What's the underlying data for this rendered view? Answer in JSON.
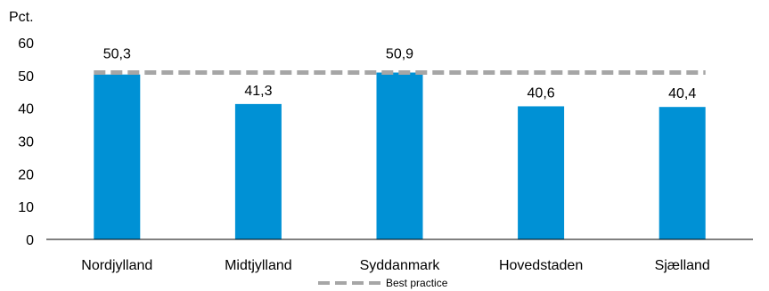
{
  "chart_data": {
    "type": "bar",
    "unit_label": "Pct.",
    "categories": [
      "Nordjylland",
      "Midtjylland",
      "Syddanmark",
      "Hovedstaden",
      "Sjælland"
    ],
    "values": [
      50.3,
      41.3,
      50.9,
      40.6,
      40.4
    ],
    "value_labels": [
      "50,3",
      "41,3",
      "50,9",
      "40,6",
      "40,4"
    ],
    "ylim": [
      0,
      60
    ],
    "yticks": [
      0,
      10,
      20,
      30,
      40,
      50,
      60
    ],
    "reference_line": {
      "name": "Best practice",
      "value": 50.9,
      "style": "dashed",
      "color": "#a6a6a6"
    },
    "legend": {
      "position": "bottom-center",
      "items": [
        "Best practice"
      ]
    },
    "bar_color": "#0091d5",
    "grid": false
  }
}
